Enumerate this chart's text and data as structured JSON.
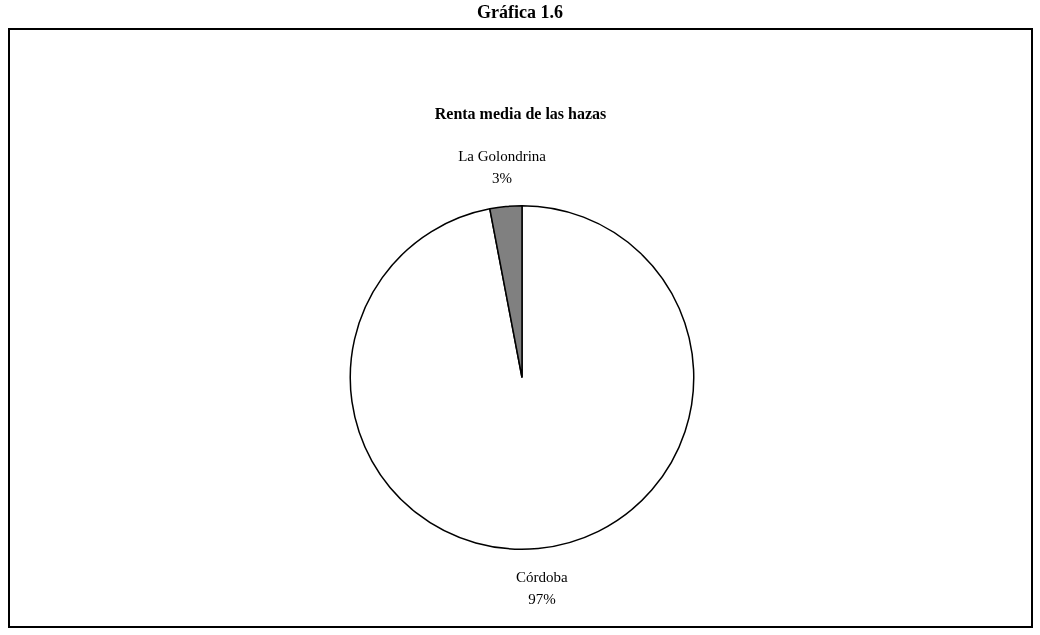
{
  "chart_data": {
    "type": "pie",
    "title": "Gráfica 1.6",
    "subtitle": "Renta media de las hazas",
    "categories": [
      "Córdoba",
      "La Golondrina"
    ],
    "values": [
      97,
      3
    ],
    "value_labels": [
      "97%",
      "3%"
    ],
    "colors": [
      "#ffffff",
      "#808080"
    ],
    "legend": false
  }
}
